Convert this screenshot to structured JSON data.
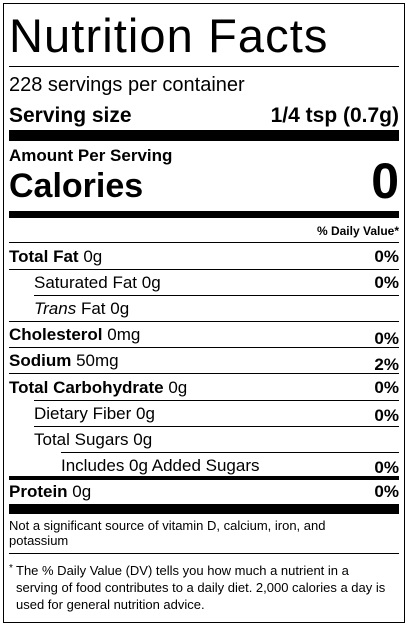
{
  "label": {
    "title": "Nutrition Facts",
    "servings_per_container": "228 servings per container",
    "serving_size_label": "Serving size",
    "serving_size_value": "1/4 tsp (0.7g)",
    "amount_per_serving": "Amount Per Serving",
    "calories_label": "Calories",
    "calories_value": "0",
    "daily_value_header": "% Daily Value*",
    "nutrients": {
      "total_fat": {
        "name": "Total Fat",
        "amount": "0g",
        "dv": "0%"
      },
      "saturated_fat": {
        "name": "Saturated Fat",
        "amount": "0g",
        "dv": "0%"
      },
      "trans_fat": {
        "name_italic": "Trans",
        "name": "Fat",
        "amount": "0g"
      },
      "cholesterol": {
        "name": "Cholesterol",
        "amount": "0mg",
        "dv": "0%"
      },
      "sodium": {
        "name": "Sodium",
        "amount": "50mg",
        "dv": "2%"
      },
      "total_carbohydrate": {
        "name": "Total Carbohydrate",
        "amount": "0g",
        "dv": "0%"
      },
      "dietary_fiber": {
        "name": "Dietary Fiber",
        "amount": "0g",
        "dv": "0%"
      },
      "total_sugars": {
        "name": "Total Sugars",
        "amount": "0g"
      },
      "added_sugars": {
        "name": "Includes 0g Added Sugars",
        "dv": "0%"
      },
      "protein": {
        "name": "Protein",
        "amount": "0g",
        "dv": "0%"
      }
    },
    "not_significant_note": "Not a significant source of vitamin D, calcium, iron, and potassium",
    "footnote_star": "*",
    "footnote": "The % Daily Value (DV) tells you how much a nutrient in a serving of food contributes to a daily diet. 2,000 calories a day is used for general nutrition advice."
  }
}
